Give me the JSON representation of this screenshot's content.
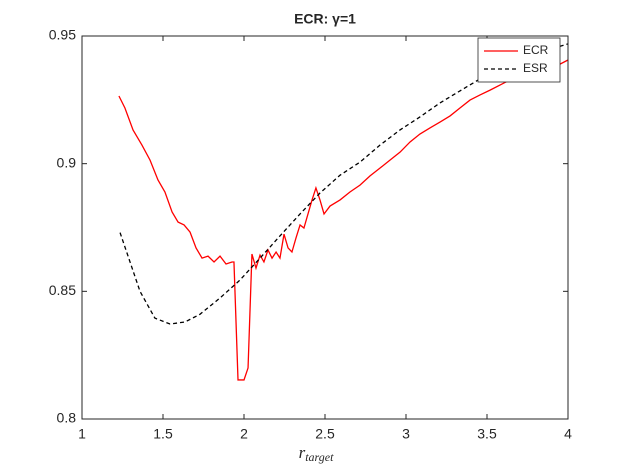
{
  "chart_data": {
    "type": "line",
    "title": "ECR: γ=1",
    "xlabel": "r",
    "xlabel_subscript": "target",
    "xlim": [
      1,
      4
    ],
    "xticks": [
      1,
      1.5,
      2,
      2.5,
      3,
      3.5,
      4
    ],
    "ylim": [
      0.8,
      0.95
    ],
    "yticks": [
      0.8,
      0.85,
      0.9,
      0.95
    ],
    "grid": false,
    "legend": "northeast",
    "series": [
      {
        "name": "ECR",
        "color": "#ff0000",
        "linestyle": "solid",
        "x": [
          1.228,
          1.265,
          1.315,
          1.37,
          1.42,
          1.469,
          1.512,
          1.556,
          1.593,
          1.63,
          1.667,
          1.704,
          1.741,
          1.778,
          1.815,
          1.852,
          1.889,
          1.926,
          1.938,
          1.963,
          2.0,
          2.025,
          2.049,
          2.074,
          2.099,
          2.123,
          2.148,
          2.173,
          2.198,
          2.222,
          2.247,
          2.272,
          2.296,
          2.321,
          2.346,
          2.37,
          2.395,
          2.42,
          2.444,
          2.469,
          2.494,
          2.531,
          2.593,
          2.654,
          2.716,
          2.778,
          2.84,
          2.901,
          2.963,
          3.025,
          3.086,
          3.148,
          3.21,
          3.272,
          3.333,
          3.395,
          3.457,
          3.519,
          3.58,
          3.642,
          3.704,
          3.765,
          3.827,
          3.889,
          3.951,
          4.0
        ],
        "values": [
          0.9265,
          0.9218,
          0.9132,
          0.9073,
          0.9014,
          0.8936,
          0.8889,
          0.8811,
          0.8771,
          0.876,
          0.8732,
          0.867,
          0.863,
          0.8638,
          0.8615,
          0.8638,
          0.8607,
          0.8615,
          0.8615,
          0.8153,
          0.8153,
          0.82,
          0.8646,
          0.8591,
          0.8642,
          0.8615,
          0.8662,
          0.863,
          0.8654,
          0.863,
          0.8724,
          0.867,
          0.8654,
          0.8709,
          0.876,
          0.8748,
          0.8803,
          0.8858,
          0.8905,
          0.8858,
          0.8803,
          0.8834,
          0.8858,
          0.8889,
          0.8916,
          0.8952,
          0.8983,
          0.9014,
          0.9045,
          0.9085,
          0.9116,
          0.914,
          0.9163,
          0.9187,
          0.9218,
          0.9249,
          0.9269,
          0.9288,
          0.9308,
          0.9328,
          0.9343,
          0.9359,
          0.9367,
          0.9382,
          0.939,
          0.9406
        ]
      },
      {
        "name": "ESR",
        "color": "#000000",
        "linestyle": "dashed",
        "x": [
          1.235,
          1.358,
          1.45,
          1.543,
          1.636,
          1.728,
          1.852,
          1.975,
          2.099,
          2.222,
          2.346,
          2.469,
          2.593,
          2.716,
          2.84,
          2.963,
          3.086,
          3.21,
          3.333,
          3.457,
          3.58,
          3.704,
          3.827,
          4.0
        ],
        "values": [
          0.873,
          0.85,
          0.8395,
          0.8372,
          0.838,
          0.841,
          0.8474,
          0.8544,
          0.863,
          0.8717,
          0.8803,
          0.8885,
          0.8955,
          0.9006,
          0.9073,
          0.9132,
          0.9183,
          0.9238,
          0.9285,
          0.9332,
          0.9371,
          0.9406,
          0.9437,
          0.9469
        ]
      }
    ]
  }
}
